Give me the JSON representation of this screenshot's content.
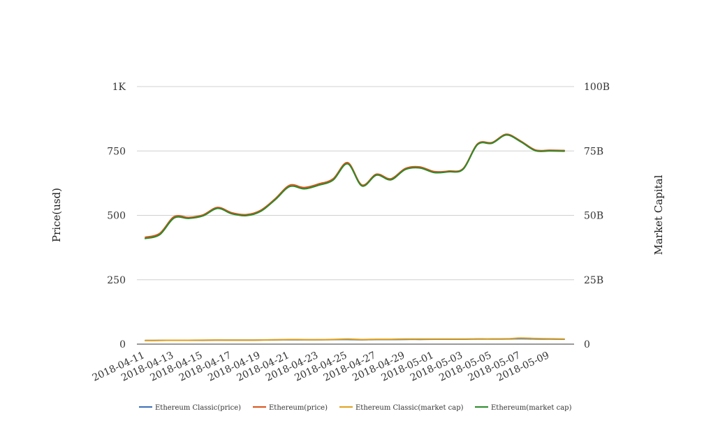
{
  "chart_data": {
    "type": "line",
    "x": [
      "2018-04-11",
      "2018-04-12",
      "2018-04-13",
      "2018-04-14",
      "2018-04-15",
      "2018-04-16",
      "2018-04-17",
      "2018-04-18",
      "2018-04-19",
      "2018-04-20",
      "2018-04-21",
      "2018-04-22",
      "2018-04-23",
      "2018-04-24",
      "2018-04-25",
      "2018-04-26",
      "2018-04-27",
      "2018-04-28",
      "2018-04-29",
      "2018-04-30",
      "2018-05-01",
      "2018-05-02",
      "2018-05-03",
      "2018-05-04",
      "2018-05-05",
      "2018-05-06",
      "2018-05-07",
      "2018-05-08",
      "2018-05-09",
      "2018-05-10"
    ],
    "x_tick_labels": [
      "2018-04-11",
      "2018-04-13",
      "2018-04-15",
      "2018-04-17",
      "2018-04-19",
      "2018-04-21",
      "2018-04-23",
      "2018-04-25",
      "2018-04-27",
      "2018-04-29",
      "2018-05-01",
      "2018-05-03",
      "2018-05-05",
      "2018-05-07",
      "2018-05-09"
    ],
    "ylabel": "Price(usd)",
    "y2label": "Market Capital",
    "ylim": [
      0,
      1000
    ],
    "y2lim": [
      0,
      100000000000
    ],
    "y_ticks": [
      0,
      250,
      500,
      750,
      1000
    ],
    "y_tick_labels": [
      "0",
      "250",
      "500",
      "750",
      "1K"
    ],
    "y2_tick_labels": [
      "0",
      "25B",
      "50B",
      "75B",
      "100B"
    ],
    "grid": "horizontal",
    "legend_position": "bottom",
    "series": [
      {
        "name": "Ethereum Classic(price)",
        "axis": "left",
        "color": "#3b6fb6",
        "values": [
          14,
          14.5,
          15,
          15,
          15,
          15.5,
          15.5,
          15.5,
          16,
          16.5,
          17,
          17,
          17,
          17.5,
          18,
          17,
          18,
          18,
          18.5,
          18.5,
          19,
          19,
          19,
          19.5,
          19.5,
          20,
          21,
          20,
          19.5,
          19
        ]
      },
      {
        "name": "Ethereum(price)",
        "axis": "left",
        "color": "#d9541e",
        "values": [
          415,
          430,
          495,
          492,
          502,
          531,
          510,
          503,
          520,
          565,
          617,
          608,
          622,
          642,
          705,
          618,
          660,
          642,
          682,
          688,
          670,
          672,
          682,
          778,
          783,
          815,
          788,
          754,
          753,
          752
        ]
      },
      {
        "name": "Ethereum Classic(market cap)",
        "axis": "right",
        "color": "#e0a11b",
        "values": [
          1400000000,
          1450000000,
          1500000000,
          1500000000,
          1550000000,
          1600000000,
          1550000000,
          1550000000,
          1600000000,
          1700000000,
          1800000000,
          1750000000,
          1750000000,
          1850000000,
          2000000000,
          1800000000,
          1900000000,
          1900000000,
          2000000000,
          2000000000,
          2000000000,
          2000000000,
          2000000000,
          2050000000,
          2050000000,
          2100000000,
          2350000000,
          2200000000,
          2100000000,
          2000000000
        ]
      },
      {
        "name": "Ethereum(market cap)",
        "axis": "right",
        "color": "#2a8a2a",
        "values": [
          41000000000,
          42500000000,
          49000000000,
          48800000000,
          49800000000,
          52700000000,
          50600000000,
          49900000000,
          51600000000,
          56100000000,
          61200000000,
          60300000000,
          61700000000,
          63700000000,
          70000000000,
          61400000000,
          65600000000,
          63800000000,
          67800000000,
          68400000000,
          66600000000,
          66900000000,
          67900000000,
          77500000000,
          78000000000,
          81200000000,
          78500000000,
          75100000000,
          75000000000,
          74900000000
        ]
      }
    ]
  }
}
